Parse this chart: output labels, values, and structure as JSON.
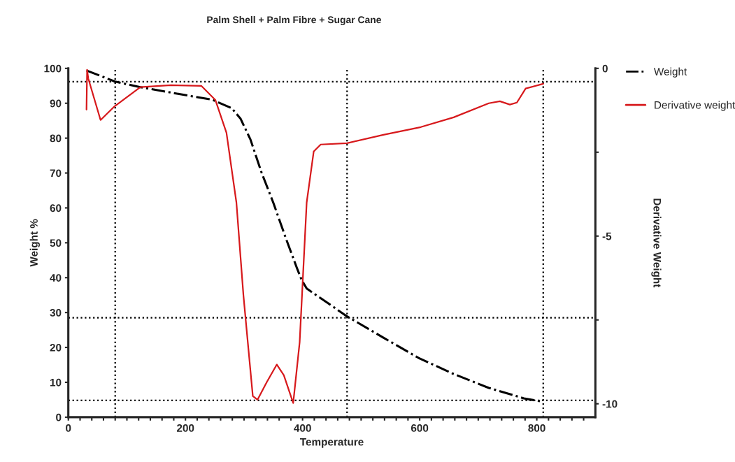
{
  "chart_data": {
    "type": "line",
    "title": "Palm Shell + Palm Fibre + Sugar Cane",
    "xlabel": "Temperature",
    "ylabel": "Weight %",
    "y2label": "Derivative Weight",
    "xlim": [
      0,
      900
    ],
    "xticks": [
      0,
      {
        "value": 20,
        "label": null
      },
      {
        "value": 40,
        "label": null
      },
      {
        "value": 60,
        "label": null
      },
      {
        "value": 80,
        "label": null
      },
      {
        "value": 100,
        "label": null
      },
      {
        "value": 120,
        "label": null
      },
      {
        "value": 140,
        "label": null
      },
      {
        "value": 160,
        "label": null
      },
      {
        "value": 180,
        "label": null
      },
      200,
      {
        "value": 220,
        "label": null
      },
      {
        "value": 240,
        "label": null
      },
      {
        "value": 260,
        "label": null
      },
      {
        "value": 280,
        "label": null
      },
      {
        "value": 300,
        "label": null
      },
      {
        "value": 320,
        "label": null
      },
      {
        "value": 340,
        "label": null
      },
      {
        "value": 360,
        "label": null
      },
      {
        "value": 380,
        "label": null
      },
      400,
      {
        "value": 420,
        "label": null
      },
      {
        "value": 440,
        "label": null
      },
      {
        "value": 460,
        "label": null
      },
      {
        "value": 480,
        "label": null
      },
      {
        "value": 500,
        "label": null
      },
      {
        "value": 520,
        "label": null
      },
      {
        "value": 540,
        "label": null
      },
      {
        "value": 560,
        "label": null
      },
      {
        "value": 580,
        "label": null
      },
      600,
      {
        "value": 620,
        "label": null
      },
      {
        "value": 640,
        "label": null
      },
      {
        "value": 660,
        "label": null
      },
      {
        "value": 680,
        "label": null
      },
      {
        "value": 700,
        "label": null
      },
      {
        "value": 720,
        "label": null
      },
      {
        "value": 740,
        "label": null
      },
      {
        "value": 760,
        "label": null
      },
      {
        "value": 780,
        "label": null
      },
      800,
      {
        "value": 820,
        "label": null
      },
      {
        "value": 840,
        "label": null
      },
      {
        "value": 860,
        "label": null
      },
      {
        "value": 880,
        "label": null
      }
    ],
    "ylim": [
      0,
      100
    ],
    "yticks": [
      0,
      10,
      20,
      30,
      40,
      50,
      60,
      70,
      80,
      90,
      100
    ],
    "y2lim": [
      -10.4,
      0
    ],
    "y2ticks": [
      {
        "value": 0,
        "label": "0"
      },
      {
        "value": -2.5,
        "label": null
      },
      {
        "value": -5,
        "label": "-5"
      },
      {
        "value": -7.5,
        "label": null
      },
      {
        "value": -10,
        "label": "-10"
      }
    ],
    "grid": false,
    "legend": "right",
    "ref_lines": [
      {
        "axis": "y",
        "value": 96.2,
        "line_style": "dotted",
        "color": "#000000"
      },
      {
        "axis": "y",
        "value": 28.5,
        "line_style": "dotted",
        "color": "#000000"
      },
      {
        "axis": "y",
        "value": 4.8,
        "line_style": "dotted",
        "color": "#000000"
      },
      {
        "axis": "x",
        "value": 80,
        "line_style": "dotted",
        "color": "#000000"
      },
      {
        "axis": "x",
        "value": 476,
        "line_style": "dotted",
        "color": "#000000"
      },
      {
        "axis": "x",
        "value": 811,
        "line_style": "dotted",
        "color": "#000000"
      }
    ],
    "series": [
      {
        "name": "Weight",
        "color": "#000000",
        "line_style": "dashdot",
        "x": [
          31,
          80,
          123,
          191,
          246,
          279,
          294,
          311,
          330,
          350,
          371,
          390,
          398,
          407,
          419,
          476,
          538,
          598,
          658,
          718,
          778,
          811
        ],
        "values": [
          99.4,
          96.2,
          94.6,
          92.6,
          91,
          88.6,
          85.6,
          79.6,
          70.1,
          61.5,
          51.5,
          42.9,
          39.5,
          36.9,
          35.5,
          28.9,
          22.8,
          17,
          12.4,
          8.4,
          5.4,
          4.4
        ]
      },
      {
        "name": "Derivative weight",
        "color": "#d7191c",
        "line_style": "solid",
        "axis": "y2",
        "x": [
          31,
          32,
          34,
          55,
          79,
          123,
          175,
          227,
          251,
          270,
          287,
          299,
          315,
          323,
          339,
          356,
          368,
          384,
          395,
          407,
          419,
          431,
          476,
          538,
          602,
          658,
          718,
          737,
          754,
          766,
          781,
          811
        ],
        "values": [
          -1.23,
          -0.04,
          -0.3,
          -1.54,
          -1.13,
          -0.56,
          -0.5,
          -0.52,
          -0.94,
          -1.92,
          -4,
          -6.77,
          -9.77,
          -9.88,
          -9.35,
          -8.83,
          -9.15,
          -9.98,
          -8.17,
          -4,
          -2.48,
          -2.27,
          -2.23,
          -1.98,
          -1.75,
          -1.46,
          -1.04,
          -0.98,
          -1.08,
          -1.02,
          -0.6,
          -0.46
        ]
      }
    ]
  }
}
